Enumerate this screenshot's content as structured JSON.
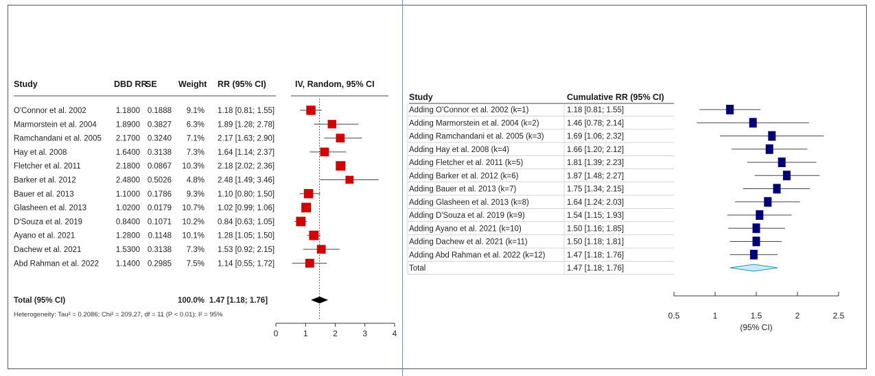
{
  "chart_data": [
    {
      "type": "forest",
      "columns": [
        "Study",
        "DBD RR",
        "SE",
        "Weight",
        "RR (95% CI)",
        "IV, Random, 95% CI"
      ],
      "studies": [
        {
          "study": "O'Connor et al. 2002",
          "rr_label": "1.1800",
          "se": "0.1888",
          "weight": "9.1%",
          "ci_text": "1.18 [0.81; 1.55]",
          "rr": 1.18,
          "lower": 0.81,
          "upper": 1.55,
          "w": 9.1
        },
        {
          "study": "Marmorstein et al. 2004",
          "rr_label": "1.8900",
          "se": "0.3827",
          "weight": "6.3%",
          "ci_text": "1.89 [1.28; 2.78]",
          "rr": 1.89,
          "lower": 1.28,
          "upper": 2.78,
          "w": 6.3
        },
        {
          "study": "Ramchandani et al. 2005",
          "rr_label": "2.1700",
          "se": "0.3240",
          "weight": "7.1%",
          "ci_text": "2.17 [1.63; 2.90]",
          "rr": 2.17,
          "lower": 1.63,
          "upper": 2.9,
          "w": 7.1
        },
        {
          "study": "Hay et al. 2008",
          "rr_label": "1.6400",
          "se": "0.3138",
          "weight": "7.3%",
          "ci_text": "1.64 [1.14; 2.37]",
          "rr": 1.64,
          "lower": 1.14,
          "upper": 2.37,
          "w": 7.3
        },
        {
          "study": "Fletcher et al. 2011",
          "rr_label": "2.1800",
          "se": "0.0867",
          "weight": "10.3%",
          "ci_text": "2.18 [2.02; 2.36]",
          "rr": 2.18,
          "lower": 2.02,
          "upper": 2.36,
          "w": 10.3
        },
        {
          "study": "Barker et al. 2012",
          "rr_label": "2.4800",
          "se": "0.5026",
          "weight": "4.8%",
          "ci_text": "2.48 [1.49; 3.46]",
          "rr": 2.48,
          "lower": 1.49,
          "upper": 3.46,
          "w": 4.8
        },
        {
          "study": "Bauer et al. 2013",
          "rr_label": "1.1000",
          "se": "0.1786",
          "weight": "9.3%",
          "ci_text": "1.10 [0.80; 1.50]",
          "rr": 1.1,
          "lower": 0.8,
          "upper": 1.5,
          "w": 9.3
        },
        {
          "study": "Glasheen et al. 2013",
          "rr_label": "1.0200",
          "se": "0.0179",
          "weight": "10.7%",
          "ci_text": "1.02 [0.99; 1.06]",
          "rr": 1.02,
          "lower": 0.99,
          "upper": 1.06,
          "w": 10.7
        },
        {
          "study": "D'Souza et al. 2019",
          "rr_label": "0.8400",
          "se": "0.1071",
          "weight": "10.2%",
          "ci_text": "0.84 [0.63; 1.05]",
          "rr": 0.84,
          "lower": 0.63,
          "upper": 1.05,
          "w": 10.2
        },
        {
          "study": "Ayano et al. 2021",
          "rr_label": "1.2800",
          "se": "0.1148",
          "weight": "10.1%",
          "ci_text": "1.28 [1.05; 1.50]",
          "rr": 1.28,
          "lower": 1.05,
          "upper": 1.5,
          "w": 10.1
        },
        {
          "study": "Dachew et al. 2021",
          "rr_label": "1.5300",
          "se": "0.3138",
          "weight": "7.3%",
          "ci_text": "1.53 [0.92; 2.15]",
          "rr": 1.53,
          "lower": 0.92,
          "upper": 2.15,
          "w": 7.3
        },
        {
          "study": "Abd Rahman et al. 2022",
          "rr_label": "1.1400",
          "se": "0.2985",
          "weight": "7.5%",
          "ci_text": "1.14 [0.55; 1.72]",
          "rr": 1.14,
          "lower": 0.55,
          "upper": 1.72,
          "w": 7.5
        }
      ],
      "total": {
        "label": "Total (95% CI)",
        "weight": "100.0%",
        "ci_text": "1.47 [1.18; 1.76]",
        "rr": 1.47,
        "lower": 1.18,
        "upper": 1.76
      },
      "heterogeneity": "Heterogeneity: Tau² = 0.2086; Chi² = 209.27, df = 11 (P < 0.01); I² = 95%",
      "xlim": [
        0,
        4
      ],
      "ticks": [
        "0",
        "1",
        "2",
        "3",
        "4"
      ],
      "colors": {
        "marker": "#d40000",
        "line": "#444444"
      }
    },
    {
      "type": "forest-cumulative",
      "columns": [
        "Study",
        "Cumulative RR (95% CI)"
      ],
      "rows": [
        {
          "study": "Adding O'Connor et al. 2002 (k=1)",
          "ci_text": "1.18 [0.81; 1.55]",
          "rr": 1.18,
          "lower": 0.81,
          "upper": 1.55
        },
        {
          "study": "Adding Marmorstein et al. 2004 (k=2)",
          "ci_text": "1.46 [0.78; 2.14]",
          "rr": 1.46,
          "lower": 0.78,
          "upper": 2.14
        },
        {
          "study": "Adding Ramchandani et al. 2005 (k=3)",
          "ci_text": "1.69 [1.06; 2.32]",
          "rr": 1.69,
          "lower": 1.06,
          "upper": 2.32
        },
        {
          "study": "Adding Hay et al. 2008 (k=4)",
          "ci_text": "1.66 [1.20; 2.12]",
          "rr": 1.66,
          "lower": 1.2,
          "upper": 2.12
        },
        {
          "study": "Adding Fletcher et al. 2011 (k=5)",
          "ci_text": "1.81 [1.39; 2.23]",
          "rr": 1.81,
          "lower": 1.39,
          "upper": 2.23
        },
        {
          "study": "Adding Barker et al. 2012 (k=6)",
          "ci_text": "1.87 [1.48; 2.27]",
          "rr": 1.87,
          "lower": 1.48,
          "upper": 2.27
        },
        {
          "study": "Adding Bauer et al. 2013 (k=7)",
          "ci_text": "1.75 [1.34; 2.15]",
          "rr": 1.75,
          "lower": 1.34,
          "upper": 2.15
        },
        {
          "study": "Adding Glasheen et al. 2013 (k=8)",
          "ci_text": "1.64 [1.24; 2.03]",
          "rr": 1.64,
          "lower": 1.24,
          "upper": 2.03
        },
        {
          "study": "Adding D'Souza et al. 2019 (k=9)",
          "ci_text": "1.54 [1.15; 1.93]",
          "rr": 1.54,
          "lower": 1.15,
          "upper": 1.93
        },
        {
          "study": "Adding Ayano et al. 2021 (k=10)",
          "ci_text": "1.50 [1.16; 1.85]",
          "rr": 1.5,
          "lower": 1.16,
          "upper": 1.85
        },
        {
          "study": "Adding Dachew et al. 2021 (k=11)",
          "ci_text": "1.50 [1.18; 1.81]",
          "rr": 1.5,
          "lower": 1.18,
          "upper": 1.81
        },
        {
          "study": "Adding Abd Rahman et al. 2022 (k=12)",
          "ci_text": "1.47 [1.18; 1.76]",
          "rr": 1.47,
          "lower": 1.18,
          "upper": 1.76
        }
      ],
      "total": {
        "label": "Total",
        "ci_text": "1.47 [1.18; 1.76]",
        "rr": 1.47,
        "lower": 1.18,
        "upper": 1.76
      },
      "xlim": [
        0.5,
        2.5
      ],
      "ticks": [
        "0.5",
        "1",
        "1.5",
        "2",
        "2.5"
      ],
      "xlabel": "(95% CI)",
      "colors": {
        "marker": "#00007a",
        "line": "#444444",
        "diamond": "#c8ecf8",
        "diamond_stroke": "#2a8fb8"
      }
    }
  ]
}
